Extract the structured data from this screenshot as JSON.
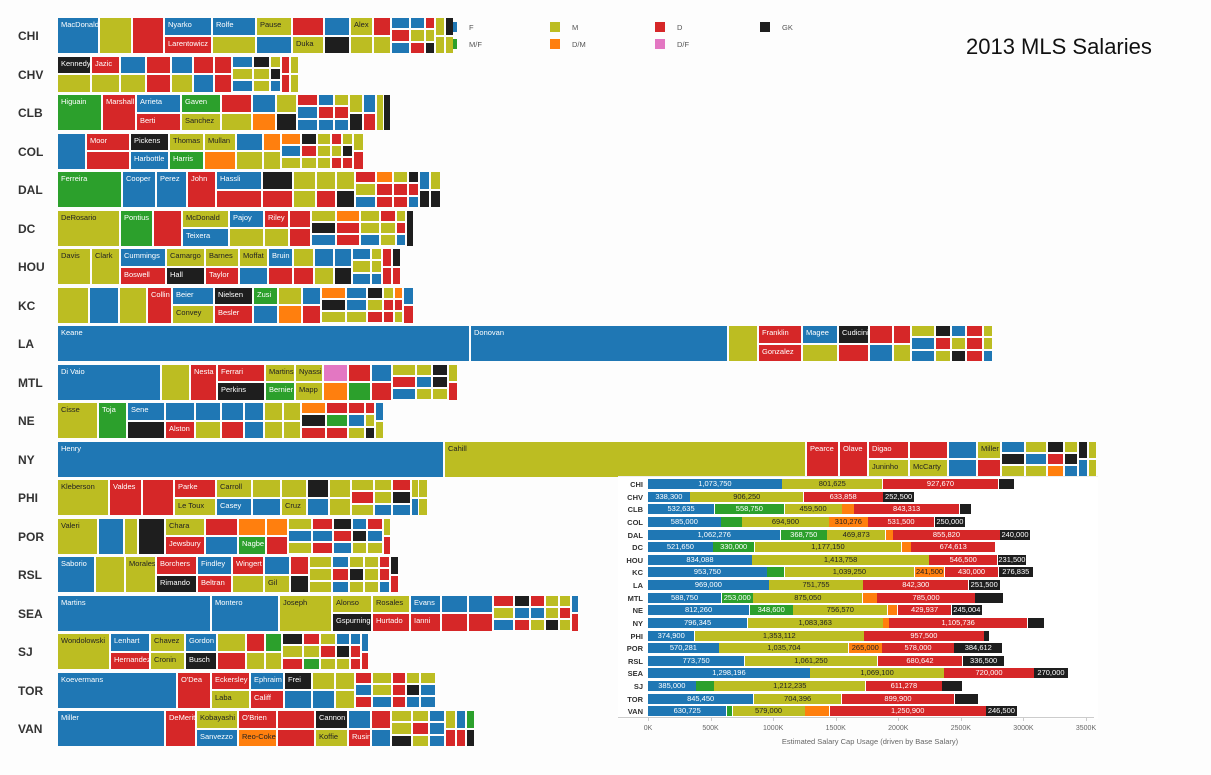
{
  "title": "2013 MLS Salaries",
  "colors": {
    "F": "#1f77b4",
    "M": "#bcbd22",
    "D": "#d62728",
    "GK": "#1e1e1e",
    "M/F": "#2ca02c",
    "D/M": "#ff7f0e",
    "D/F": "#e377c2"
  },
  "legend": [
    {
      "pos": "F",
      "label": "F"
    },
    {
      "pos": "M",
      "label": "M"
    },
    {
      "pos": "D",
      "label": "D"
    },
    {
      "pos": "GK",
      "label": "GK"
    },
    {
      "pos": "M/F",
      "label": "M/F"
    },
    {
      "pos": "D/M",
      "label": "D/M"
    },
    {
      "pos": "D/F",
      "label": "D/F"
    }
  ],
  "treemap": {
    "teams": [
      {
        "team": "CHI",
        "players": [
          "MacDonald",
          "Nyarko",
          "Larentowicz",
          "Rolfe",
          "Pause",
          "Duka",
          "Alex"
        ]
      },
      {
        "team": "CHV",
        "players": [
          "Kennedy",
          "Jazic"
        ]
      },
      {
        "team": "CLB",
        "players": [
          "Higuain",
          "Marshall",
          "Arrieta",
          "Berti",
          "Gaven",
          "Sanchez"
        ]
      },
      {
        "team": "COL",
        "players": [
          "Moor",
          "Pickens",
          "Harbottle",
          "Thomas",
          "Harris",
          "Mullan"
        ]
      },
      {
        "team": "DAL",
        "players": [
          "Ferreira",
          "Cooper",
          "Perez",
          "John",
          "Hassli"
        ]
      },
      {
        "team": "DC",
        "players": [
          "DeRosario",
          "Pontius",
          "McDonald",
          "Teixera",
          "Pajoy",
          "Riley"
        ]
      },
      {
        "team": "HOU",
        "players": [
          "Davis",
          "Clark",
          "Cummings",
          "Boswell",
          "Camargo",
          "Hall",
          "Barnes",
          "Taylor",
          "Moffat",
          "Bruin"
        ]
      },
      {
        "team": "KC",
        "players": [
          "Collin",
          "Beier",
          "Convey",
          "Nielsen",
          "Besler",
          "Zusi"
        ]
      },
      {
        "team": "LA",
        "players": [
          "Keane",
          "Donovan",
          "Franklin",
          "Gonzalez",
          "Magee",
          "Cudicini"
        ]
      },
      {
        "team": "MTL",
        "players": [
          "Di Vaio",
          "Nesta",
          "Ferrari",
          "Perkins",
          "Martins",
          "Bernier",
          "Nyassi",
          "Mapp"
        ]
      },
      {
        "team": "NE",
        "players": [
          "Cisse",
          "Toja",
          "Sene",
          "Alston"
        ]
      },
      {
        "team": "NY",
        "players": [
          "Henry",
          "Cahill",
          "Pearce",
          "Olave",
          "Digao",
          "Juninho",
          "McCarty",
          "Miller"
        ]
      },
      {
        "team": "PHI",
        "players": [
          "Kleberson",
          "Valdes",
          "Parke",
          "Le Toux",
          "Carroll",
          "Casey",
          "Cruz"
        ]
      },
      {
        "team": "POR",
        "players": [
          "Valeri",
          "Chara",
          "Jewsbury",
          "Nagbe"
        ]
      },
      {
        "team": "RSL",
        "players": [
          "Saborio",
          "Morales",
          "Borchers",
          "Rimando",
          "Findley",
          "Beltran",
          "Wingert",
          "Gil"
        ]
      },
      {
        "team": "SEA",
        "players": [
          "Martins",
          "Montero",
          "Joseph",
          "Alonso",
          "Gspurning",
          "Rosales",
          "Hurtado",
          "Evans",
          "Ianni"
        ]
      },
      {
        "team": "SJ",
        "players": [
          "Wondolowski",
          "Lenhart",
          "Hernandez",
          "Chavez",
          "Cronin",
          "Gordon",
          "Busch"
        ]
      },
      {
        "team": "TOR",
        "players": [
          "Koevermans",
          "O'Dea",
          "Eckersley",
          "Laba",
          "Ephraim",
          "Califf",
          "Frei"
        ]
      },
      {
        "team": "VAN",
        "players": [
          "Miller",
          "DeMerit",
          "Kobayashi",
          "Sanvezzo",
          "O'Brien",
          "Reo-Coker",
          "Cannon",
          "Koffie",
          "Rusin"
        ]
      }
    ]
  },
  "chart_data": {
    "type": "bar",
    "stacked": true,
    "orientation": "horizontal",
    "xlabel": "Estimated Salary Cap Usage (driven by Base Salary)",
    "xlim": [
      0,
      3500000
    ],
    "ticks": [
      "0K",
      "500K",
      "1000K",
      "1500K",
      "2000K",
      "2500K",
      "3000K",
      "3500K"
    ],
    "tick_values": [
      0,
      500000,
      1000000,
      1500000,
      2000000,
      2500000,
      3000000,
      3500000
    ],
    "rows": [
      {
        "team": "CHI",
        "segments": [
          {
            "pos": "F",
            "value": 1073750,
            "label": "1,073,750"
          },
          {
            "pos": "M",
            "value": 801625,
            "label": "801,625"
          },
          {
            "pos": "D",
            "value": 927670,
            "label": "927,670"
          },
          {
            "pos": "GK",
            "value": 125000,
            "label": ""
          }
        ]
      },
      {
        "team": "CHV",
        "segments": [
          {
            "pos": "F",
            "value": 338300,
            "label": "338,300"
          },
          {
            "pos": "M",
            "value": 906250,
            "label": "906,250"
          },
          {
            "pos": "D",
            "value": 633858,
            "label": "633,858"
          },
          {
            "pos": "GK",
            "value": 252500,
            "label": "252,500"
          }
        ]
      },
      {
        "team": "CLB",
        "segments": [
          {
            "pos": "F",
            "value": 532635,
            "label": "532,635"
          },
          {
            "pos": "M/F",
            "value": 558750,
            "label": "558,750"
          },
          {
            "pos": "M",
            "value": 459500,
            "label": "459,500"
          },
          {
            "pos": "D/M",
            "value": 96000,
            "label": ""
          },
          {
            "pos": "D",
            "value": 843313,
            "label": "843,313"
          },
          {
            "pos": "GK",
            "value": 93000,
            "label": ""
          }
        ]
      },
      {
        "team": "COL",
        "segments": [
          {
            "pos": "F",
            "value": 585000,
            "label": "585,000"
          },
          {
            "pos": "M/F",
            "value": 168000,
            "label": ""
          },
          {
            "pos": "M",
            "value": 694900,
            "label": "694,900"
          },
          {
            "pos": "D/M",
            "value": 310276,
            "label": "310,276"
          },
          {
            "pos": "D",
            "value": 531500,
            "label": "531,500"
          },
          {
            "pos": "GK",
            "value": 250000,
            "label": "250,000"
          }
        ]
      },
      {
        "team": "DAL",
        "segments": [
          {
            "pos": "F",
            "value": 1062276,
            "label": "1,062,276"
          },
          {
            "pos": "M/F",
            "value": 368750,
            "label": "368,750"
          },
          {
            "pos": "M",
            "value": 469873,
            "label": "469,873"
          },
          {
            "pos": "D/M",
            "value": 58000,
            "label": ""
          },
          {
            "pos": "D",
            "value": 855820,
            "label": "855,820"
          },
          {
            "pos": "GK",
            "value": 240000,
            "label": "240,000"
          }
        ]
      },
      {
        "team": "DC",
        "segments": [
          {
            "pos": "F",
            "value": 521650,
            "label": "521,650"
          },
          {
            "pos": "M/F",
            "value": 330000,
            "label": "330,000"
          },
          {
            "pos": "M",
            "value": 1177150,
            "label": "1,177,150"
          },
          {
            "pos": "D/M",
            "value": 75000,
            "label": ""
          },
          {
            "pos": "D",
            "value": 674613,
            "label": "674,613"
          }
        ]
      },
      {
        "team": "HOU",
        "segments": [
          {
            "pos": "F",
            "value": 834088,
            "label": "834,088"
          },
          {
            "pos": "M",
            "value": 1413758,
            "label": "1,413,758"
          },
          {
            "pos": "D",
            "value": 546500,
            "label": "546,500"
          },
          {
            "pos": "GK",
            "value": 231500,
            "label": "231,500"
          }
        ]
      },
      {
        "team": "KC",
        "segments": [
          {
            "pos": "F",
            "value": 953750,
            "label": "953,750"
          },
          {
            "pos": "M/F",
            "value": 138000,
            "label": ""
          },
          {
            "pos": "M",
            "value": 1039250,
            "label": "1,039,250"
          },
          {
            "pos": "D/M",
            "value": 241500,
            "label": "241,500"
          },
          {
            "pos": "D",
            "value": 430000,
            "label": "430,000"
          },
          {
            "pos": "GK",
            "value": 276835,
            "label": "276,835"
          }
        ]
      },
      {
        "team": "LA",
        "segments": [
          {
            "pos": "F",
            "value": 969000,
            "label": "969,000"
          },
          {
            "pos": "M",
            "value": 751755,
            "label": "751,755"
          },
          {
            "pos": "D",
            "value": 842300,
            "label": "842,300"
          },
          {
            "pos": "GK",
            "value": 251500,
            "label": "251,500"
          }
        ]
      },
      {
        "team": "MTL",
        "segments": [
          {
            "pos": "F",
            "value": 588750,
            "label": "588,750"
          },
          {
            "pos": "M/F",
            "value": 253000,
            "label": "253,000"
          },
          {
            "pos": "M",
            "value": 875050,
            "label": "875,050"
          },
          {
            "pos": "D/M",
            "value": 115000,
            "label": ""
          },
          {
            "pos": "D",
            "value": 785000,
            "label": "785,000"
          },
          {
            "pos": "GK",
            "value": 226000,
            "label": ""
          }
        ]
      },
      {
        "team": "NE",
        "segments": [
          {
            "pos": "F",
            "value": 812260,
            "label": "812,260"
          },
          {
            "pos": "M/F",
            "value": 348600,
            "label": "348,600"
          },
          {
            "pos": "M",
            "value": 756570,
            "label": "756,570"
          },
          {
            "pos": "D/M",
            "value": 80000,
            "label": ""
          },
          {
            "pos": "D",
            "value": 429937,
            "label": "429,937"
          },
          {
            "pos": "GK",
            "value": 245004,
            "label": "245,004"
          }
        ]
      },
      {
        "team": "NY",
        "segments": [
          {
            "pos": "F",
            "value": 796345,
            "label": "796,345"
          },
          {
            "pos": "M",
            "value": 1083363,
            "label": "1,083,363"
          },
          {
            "pos": "D/M",
            "value": 48000,
            "label": ""
          },
          {
            "pos": "D",
            "value": 1105736,
            "label": "1,105,736"
          },
          {
            "pos": "GK",
            "value": 136000,
            "label": ""
          }
        ]
      },
      {
        "team": "PHI",
        "segments": [
          {
            "pos": "F",
            "value": 374900,
            "label": "374,900"
          },
          {
            "pos": "M",
            "value": 1353112,
            "label": "1,353,112"
          },
          {
            "pos": "D",
            "value": 957500,
            "label": "957,500"
          },
          {
            "pos": "GK",
            "value": 43000,
            "label": ""
          }
        ]
      },
      {
        "team": "POR",
        "segments": [
          {
            "pos": "F",
            "value": 570281,
            "label": "570,281"
          },
          {
            "pos": "M",
            "value": 1035704,
            "label": "1,035,704"
          },
          {
            "pos": "D/M",
            "value": 265000,
            "label": "265,000"
          },
          {
            "pos": "D",
            "value": 578000,
            "label": "578,000"
          },
          {
            "pos": "GK",
            "value": 384612,
            "label": "384,612"
          }
        ]
      },
      {
        "team": "RSL",
        "segments": [
          {
            "pos": "F",
            "value": 773750,
            "label": "773,750"
          },
          {
            "pos": "M",
            "value": 1061250,
            "label": "1,061,250"
          },
          {
            "pos": "D",
            "value": 680642,
            "label": "680,642"
          },
          {
            "pos": "GK",
            "value": 336500,
            "label": "336,500"
          }
        ]
      },
      {
        "team": "SEA",
        "segments": [
          {
            "pos": "F",
            "value": 1298196,
            "label": "1,298,196"
          },
          {
            "pos": "M",
            "value": 1069100,
            "label": "1,069,100"
          },
          {
            "pos": "D",
            "value": 720000,
            "label": "720,000"
          },
          {
            "pos": "GK",
            "value": 270000,
            "label": "270,000"
          }
        ]
      },
      {
        "team": "SJ",
        "segments": [
          {
            "pos": "F",
            "value": 385000,
            "label": "385,000"
          },
          {
            "pos": "M/F",
            "value": 144000,
            "label": ""
          },
          {
            "pos": "M",
            "value": 1212235,
            "label": "1,212,235"
          },
          {
            "pos": "D",
            "value": 611278,
            "label": "611,278"
          },
          {
            "pos": "GK",
            "value": 162000,
            "label": ""
          }
        ]
      },
      {
        "team": "TOR",
        "segments": [
          {
            "pos": "F",
            "value": 845450,
            "label": "845,450"
          },
          {
            "pos": "M",
            "value": 704396,
            "label": "704,396"
          },
          {
            "pos": "D",
            "value": 899900,
            "label": "899,900"
          },
          {
            "pos": "GK",
            "value": 194000,
            "label": ""
          }
        ]
      },
      {
        "team": "VAN",
        "segments": [
          {
            "pos": "F",
            "value": 630725,
            "label": "630,725"
          },
          {
            "pos": "M/F",
            "value": 45000,
            "label": ""
          },
          {
            "pos": "M",
            "value": 579000,
            "label": "579,000"
          },
          {
            "pos": "D/M",
            "value": 197000,
            "label": ""
          },
          {
            "pos": "D",
            "value": 1250900,
            "label": "1,250,900"
          },
          {
            "pos": "GK",
            "value": 246500,
            "label": "246,500"
          }
        ]
      }
    ]
  }
}
